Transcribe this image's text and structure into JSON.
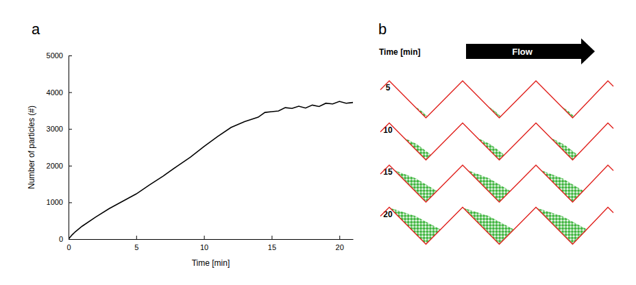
{
  "chart_data": {
    "type": "line",
    "title": "a",
    "x_label": "Time [min]",
    "y_label": "Number of particles (#)",
    "x": [
      0,
      0.25,
      0.5,
      1,
      2,
      3,
      4,
      5,
      6,
      7,
      8,
      9,
      10,
      11,
      12,
      13,
      14,
      14.5,
      15,
      15.5,
      16,
      16.5,
      17,
      17.5,
      18,
      18.5,
      19,
      19.5,
      20,
      20.5,
      21
    ],
    "values": [
      0,
      110,
      200,
      350,
      600,
      830,
      1030,
      1230,
      1480,
      1720,
      1980,
      2230,
      2520,
      2790,
      3040,
      3200,
      3320,
      3450,
      3470,
      3490,
      3580,
      3560,
      3620,
      3570,
      3650,
      3610,
      3700,
      3680,
      3750,
      3700,
      3720
    ],
    "color": "#000000",
    "xlim": [
      0,
      21
    ],
    "xticks": [
      0,
      5,
      10,
      15,
      20
    ],
    "ylim": [
      0,
      5000
    ],
    "yticks": [
      0,
      1000,
      2000,
      3000,
      4000,
      5000
    ]
  },
  "panel_b": {
    "label": "b",
    "time_label": "Time [min]",
    "flow_label": "Flow",
    "times": [
      5,
      10,
      15,
      20
    ]
  }
}
